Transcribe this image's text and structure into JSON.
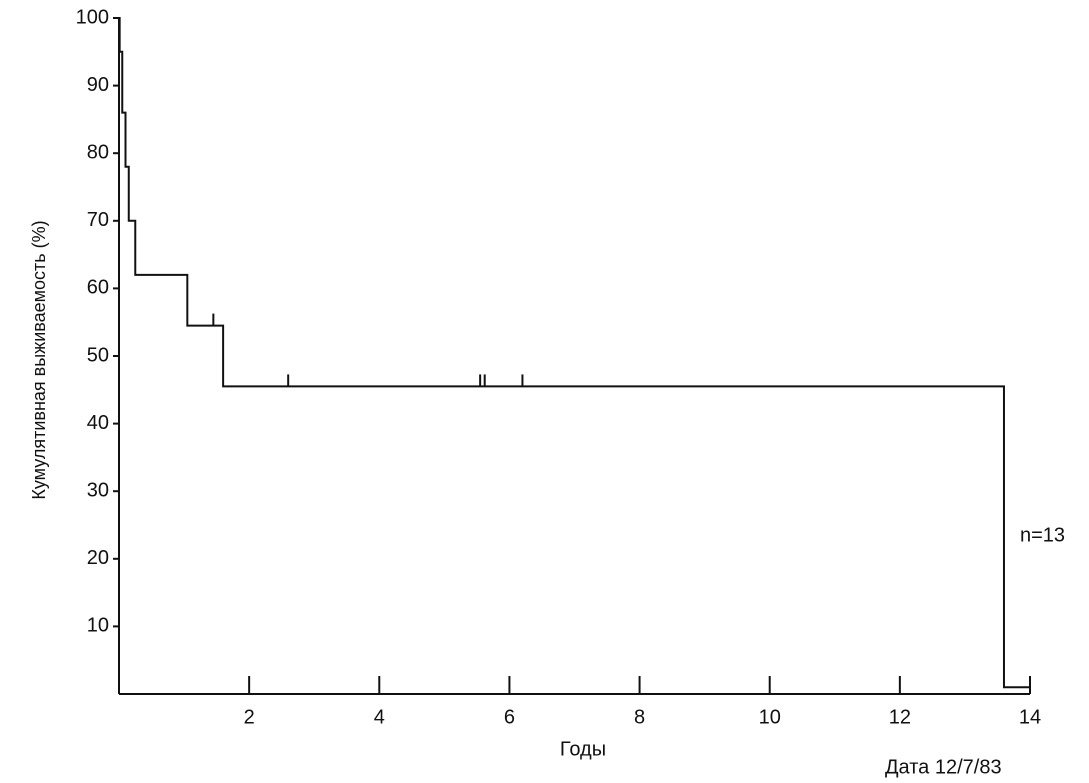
{
  "chart_data": {
    "type": "line",
    "step": true,
    "y_label": "Кумулятивная выживаемость (%)",
    "x_label": "Годы",
    "annotations": [
      "n=13",
      "Дата 12/7/83"
    ],
    "x": [
      0,
      0.01,
      0.05,
      0.1,
      0.15,
      0.25,
      1.05,
      1.6,
      13.6,
      14
    ],
    "values": [
      100,
      95,
      86,
      78,
      70,
      62,
      54.5,
      45.5,
      1,
      1
    ],
    "censored": {
      "x": [
        1.45,
        2.6,
        5.55,
        5.62,
        6.2
      ],
      "values": [
        54.5,
        45.5,
        45.5,
        45.5,
        45.5
      ]
    },
    "color": "#000000",
    "xlim": [
      0,
      14
    ],
    "ylim": [
      0,
      100
    ],
    "xticks": [
      2,
      4,
      6,
      8,
      10,
      12,
      14
    ],
    "yticks": [
      10,
      20,
      30,
      40,
      50,
      60,
      70,
      80,
      90,
      100
    ]
  }
}
